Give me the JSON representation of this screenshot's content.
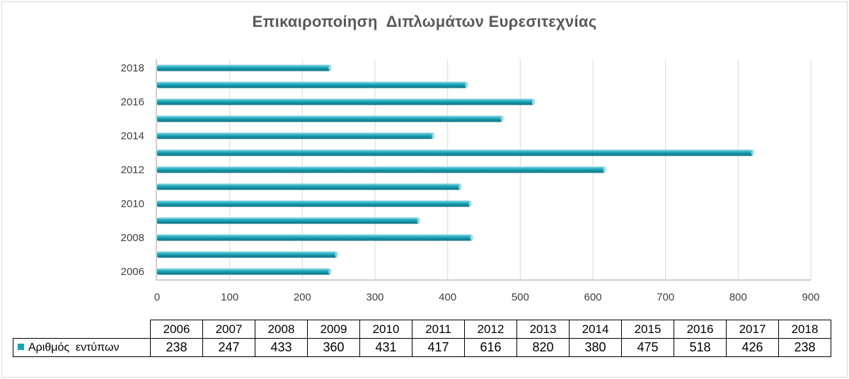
{
  "chart_data": {
    "type": "bar",
    "orientation": "horizontal",
    "title": "Επικαιροποίηση  Διπλωμάτων Ευρεσιτεχνίας",
    "categories": [
      "2006",
      "2007",
      "2008",
      "2009",
      "2010",
      "2011",
      "2012",
      "2013",
      "2014",
      "2015",
      "2016",
      "2017",
      "2018"
    ],
    "y_tick_labels": [
      "2006",
      "2008",
      "2010",
      "2012",
      "2014",
      "2016",
      "2018"
    ],
    "series": [
      {
        "name": "Αριθμός  εντύπων",
        "color": "#1aa3b8",
        "values": [
          238,
          247,
          433,
          360,
          431,
          417,
          616,
          820,
          380,
          475,
          518,
          426,
          238
        ]
      }
    ],
    "xlim": [
      0,
      900
    ],
    "x_ticks": [
      0,
      100,
      200,
      300,
      400,
      500,
      600,
      700,
      800,
      900
    ],
    "gridlines": "vertical",
    "legend": "data-table-below",
    "colors": {
      "bar": "#1aa3b8",
      "bar_dark": "#0f6f80",
      "bar_light": "#8fdce8",
      "grid": "#d9d9d9",
      "axis_text": "#404040",
      "title": "#595959"
    }
  }
}
